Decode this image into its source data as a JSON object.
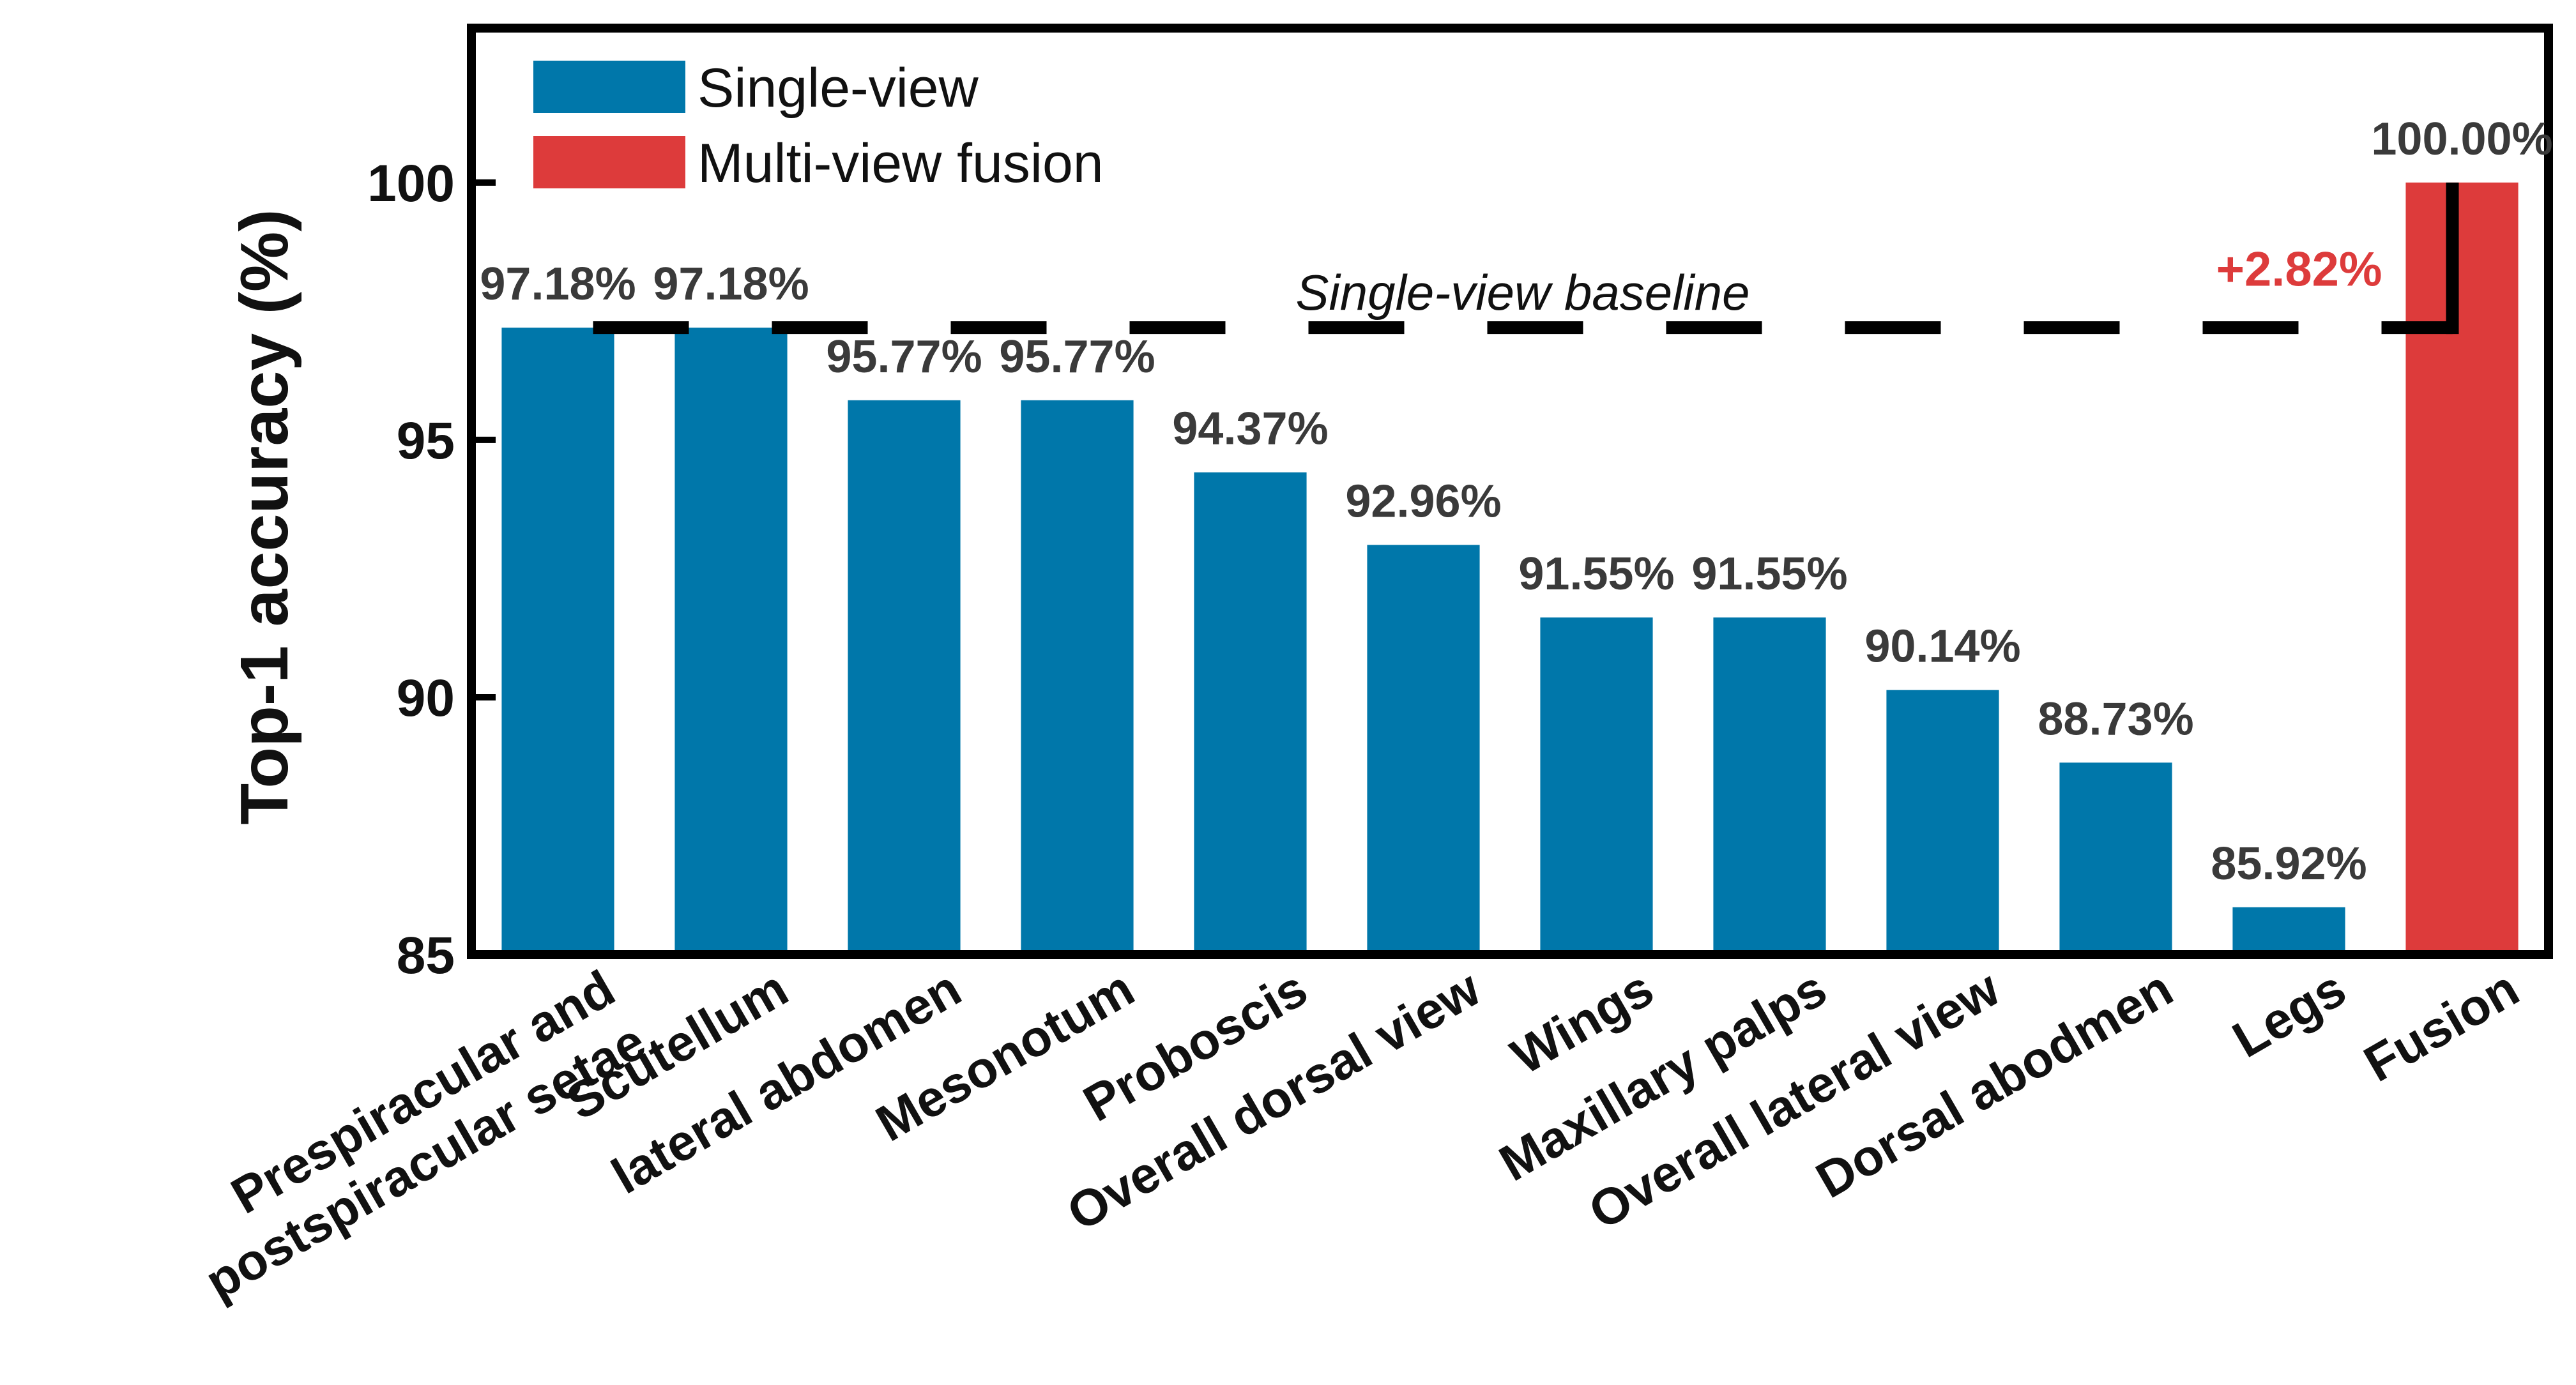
{
  "chart_data": {
    "type": "bar",
    "title": "",
    "xlabel": "",
    "ylabel": "Top-1 accuracy (%)",
    "ylim": [
      85,
      103
    ],
    "yticks": [
      85,
      90,
      95,
      100
    ],
    "grid": false,
    "legend_placement": "top-left",
    "categories": [
      "Prespiracular and\npostspiracular setae",
      "Scutellum",
      "lateral abdomen",
      "Mesonotum",
      "Proboscis",
      "Overall dorsal view",
      "Wings",
      "Maxillary palps",
      "Overall lateral view",
      "Dorsal abodmen",
      "Legs",
      "Fusion"
    ],
    "values": [
      97.18,
      97.18,
      95.77,
      95.77,
      94.37,
      92.96,
      91.55,
      91.55,
      90.14,
      88.73,
      85.92,
      100.0
    ],
    "data_labels": [
      "97.18%",
      "97.18%",
      "95.77%",
      "95.77%",
      "94.37%",
      "92.96%",
      "91.55%",
      "91.55%",
      "90.14%",
      "88.73%",
      "85.92%",
      "100.00%"
    ],
    "groups": [
      "single",
      "single",
      "single",
      "single",
      "single",
      "single",
      "single",
      "single",
      "single",
      "single",
      "single",
      "fusion"
    ],
    "legend": [
      {
        "key": "single",
        "label": "Single-view",
        "color": "#0077AA"
      },
      {
        "key": "fusion",
        "label": "Multi-view fusion",
        "color": "#DD3B3B"
      }
    ],
    "baseline": {
      "value": 97.18,
      "label": "Single-view baseline"
    },
    "improvement": {
      "label": "+2.82%",
      "color": "#DD3B3B"
    }
  }
}
